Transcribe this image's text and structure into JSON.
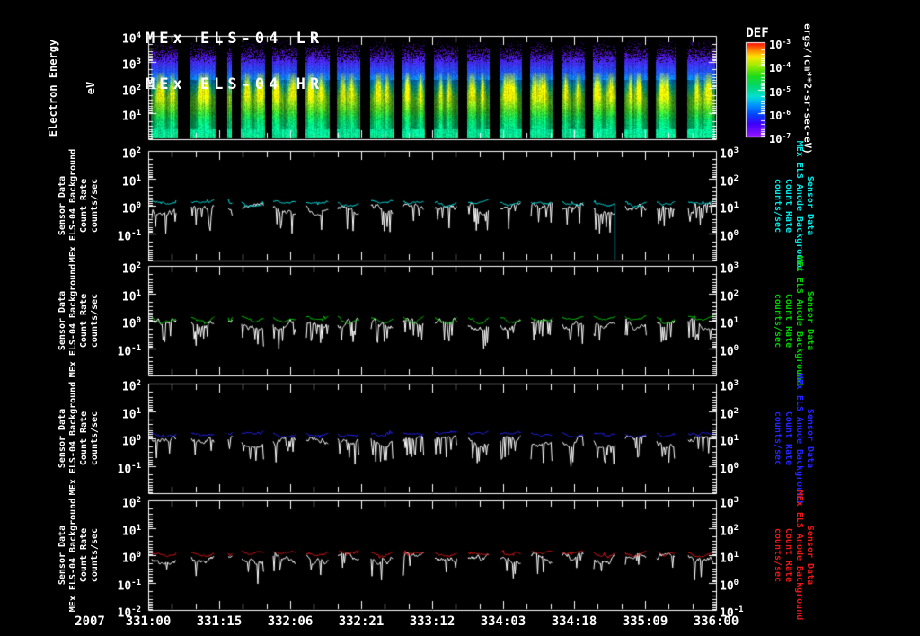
{
  "title_lines": [
    "MEx ELS-04 LR",
    "MEx ELS-04 HR"
  ],
  "left_panel_label_lines": [
    "Sensor Data",
    "MEx ELS-04 Background",
    "Count Rate",
    "counts/sec"
  ],
  "right_panel_label_lines": [
    "Sensor Data",
    "MEx ELS Anode Background",
    "Count Rate",
    "counts/sec"
  ],
  "x_axis": {
    "year": "2007",
    "tick_labels": [
      "331:00",
      "331:15",
      "332:06",
      "332:21",
      "333:12",
      "334:03",
      "334:18",
      "335:09",
      "336:00"
    ],
    "total_hours": 120,
    "major_tick_hours": 15,
    "minor_tick_hours": 5
  },
  "segments": [
    [
      0.0047,
      0.0475
    ],
    [
      0.0744,
      0.0443
    ],
    [
      0.1392,
      0.0079
    ],
    [
      0.163,
      0.0427
    ],
    [
      0.2184,
      0.0443
    ],
    [
      0.2769,
      0.0427
    ],
    [
      0.3323,
      0.0411
    ],
    [
      0.3908,
      0.0427
    ],
    [
      0.4478,
      0.0396
    ],
    [
      0.5032,
      0.0427
    ],
    [
      0.5617,
      0.0396
    ],
    [
      0.6187,
      0.0396
    ],
    [
      0.6725,
      0.0411
    ],
    [
      0.7278,
      0.0411
    ],
    [
      0.7832,
      0.0411
    ],
    [
      0.8386,
      0.0411
    ],
    [
      0.894,
      0.0348
    ],
    [
      0.9494,
      0.049
    ]
  ],
  "chart_data": [
    {
      "type": "heatmap",
      "name": "electron-energy-spectrogram",
      "ylabel_lines": [
        "Electron Energy",
        "eV"
      ],
      "y_scale": "log",
      "y_range_ev": [
        1,
        10000
      ],
      "y_tick_exponents": [
        4,
        3,
        2,
        1
      ],
      "colorbar": {
        "title": "DEF",
        "units": "ergs/(cm**2-sr-sec-eV)",
        "scale": "log",
        "tick_exponents": [
          -3,
          -4,
          -5,
          -6,
          -7
        ]
      },
      "description": "Electron differential energy flux vs time in periodic orbit segments; flux peaks near 10-100 eV (yellow-green cores), purple speckle noise above 1 keV"
    },
    {
      "type": "line",
      "name": "count-rate-panel-1",
      "line_color": "#00e8e8",
      "y_scale": "log",
      "left_tick_exponents": [
        2,
        1,
        0,
        -1
      ],
      "right_tick_exponents": [
        3,
        2,
        1,
        0
      ],
      "series": [
        {
          "name": "MEx ELS-04 Background Count Rate (counts/sec)",
          "color": "#ffffff",
          "approx_level": 0.85
        },
        {
          "name": "MEx ELS Anode Background Count Rate (counts/sec)",
          "color": "#00e8e8",
          "approx_level": 1.4
        }
      ],
      "anomaly": {
        "type": "dropout-spike",
        "segment_index": 14,
        "drop_to": 0.01
      }
    },
    {
      "type": "line",
      "name": "count-rate-panel-2",
      "line_color": "#00d000",
      "y_scale": "log",
      "left_tick_exponents": [
        2,
        1,
        0,
        -1
      ],
      "right_tick_exponents": [
        3,
        2,
        1,
        0
      ],
      "series": [
        {
          "name": "MEx ELS-04 Background Count Rate (counts/sec)",
          "color": "#ffffff",
          "approx_level": 0.85
        },
        {
          "name": "MEx ELS Anode Background Count Rate (counts/sec)",
          "color": "#00d000",
          "approx_level": 1.35
        }
      ]
    },
    {
      "type": "line",
      "name": "count-rate-panel-3",
      "line_color": "#2424ff",
      "y_scale": "log",
      "left_tick_exponents": [
        2,
        1,
        0,
        -1
      ],
      "right_tick_exponents": [
        3,
        2,
        1,
        0
      ],
      "series": [
        {
          "name": "MEx ELS-04 Background Count Rate (counts/sec)",
          "color": "#ffffff",
          "approx_level": 0.8
        },
        {
          "name": "MEx ELS Anode Background Count Rate (counts/sec)",
          "color": "#2424ff",
          "approx_level": 1.5
        }
      ]
    },
    {
      "type": "line",
      "name": "count-rate-panel-4",
      "line_color": "#e81818",
      "y_scale": "log",
      "left_tick_exponents": [
        2,
        1,
        0,
        -1
      ],
      "right_tick_exponents": [
        3,
        2,
        1,
        0
      ],
      "extra_left_bottom_exponent": -2,
      "extra_right_bottom_exponent": -1,
      "series": [
        {
          "name": "MEx ELS-04 Background Count Rate (counts/sec)",
          "color": "#ffffff",
          "approx_level": 0.8
        },
        {
          "name": "MEx ELS Anode Background Count Rate (counts/sec)",
          "color": "#e81818",
          "approx_level": 1.25
        }
      ]
    }
  ]
}
